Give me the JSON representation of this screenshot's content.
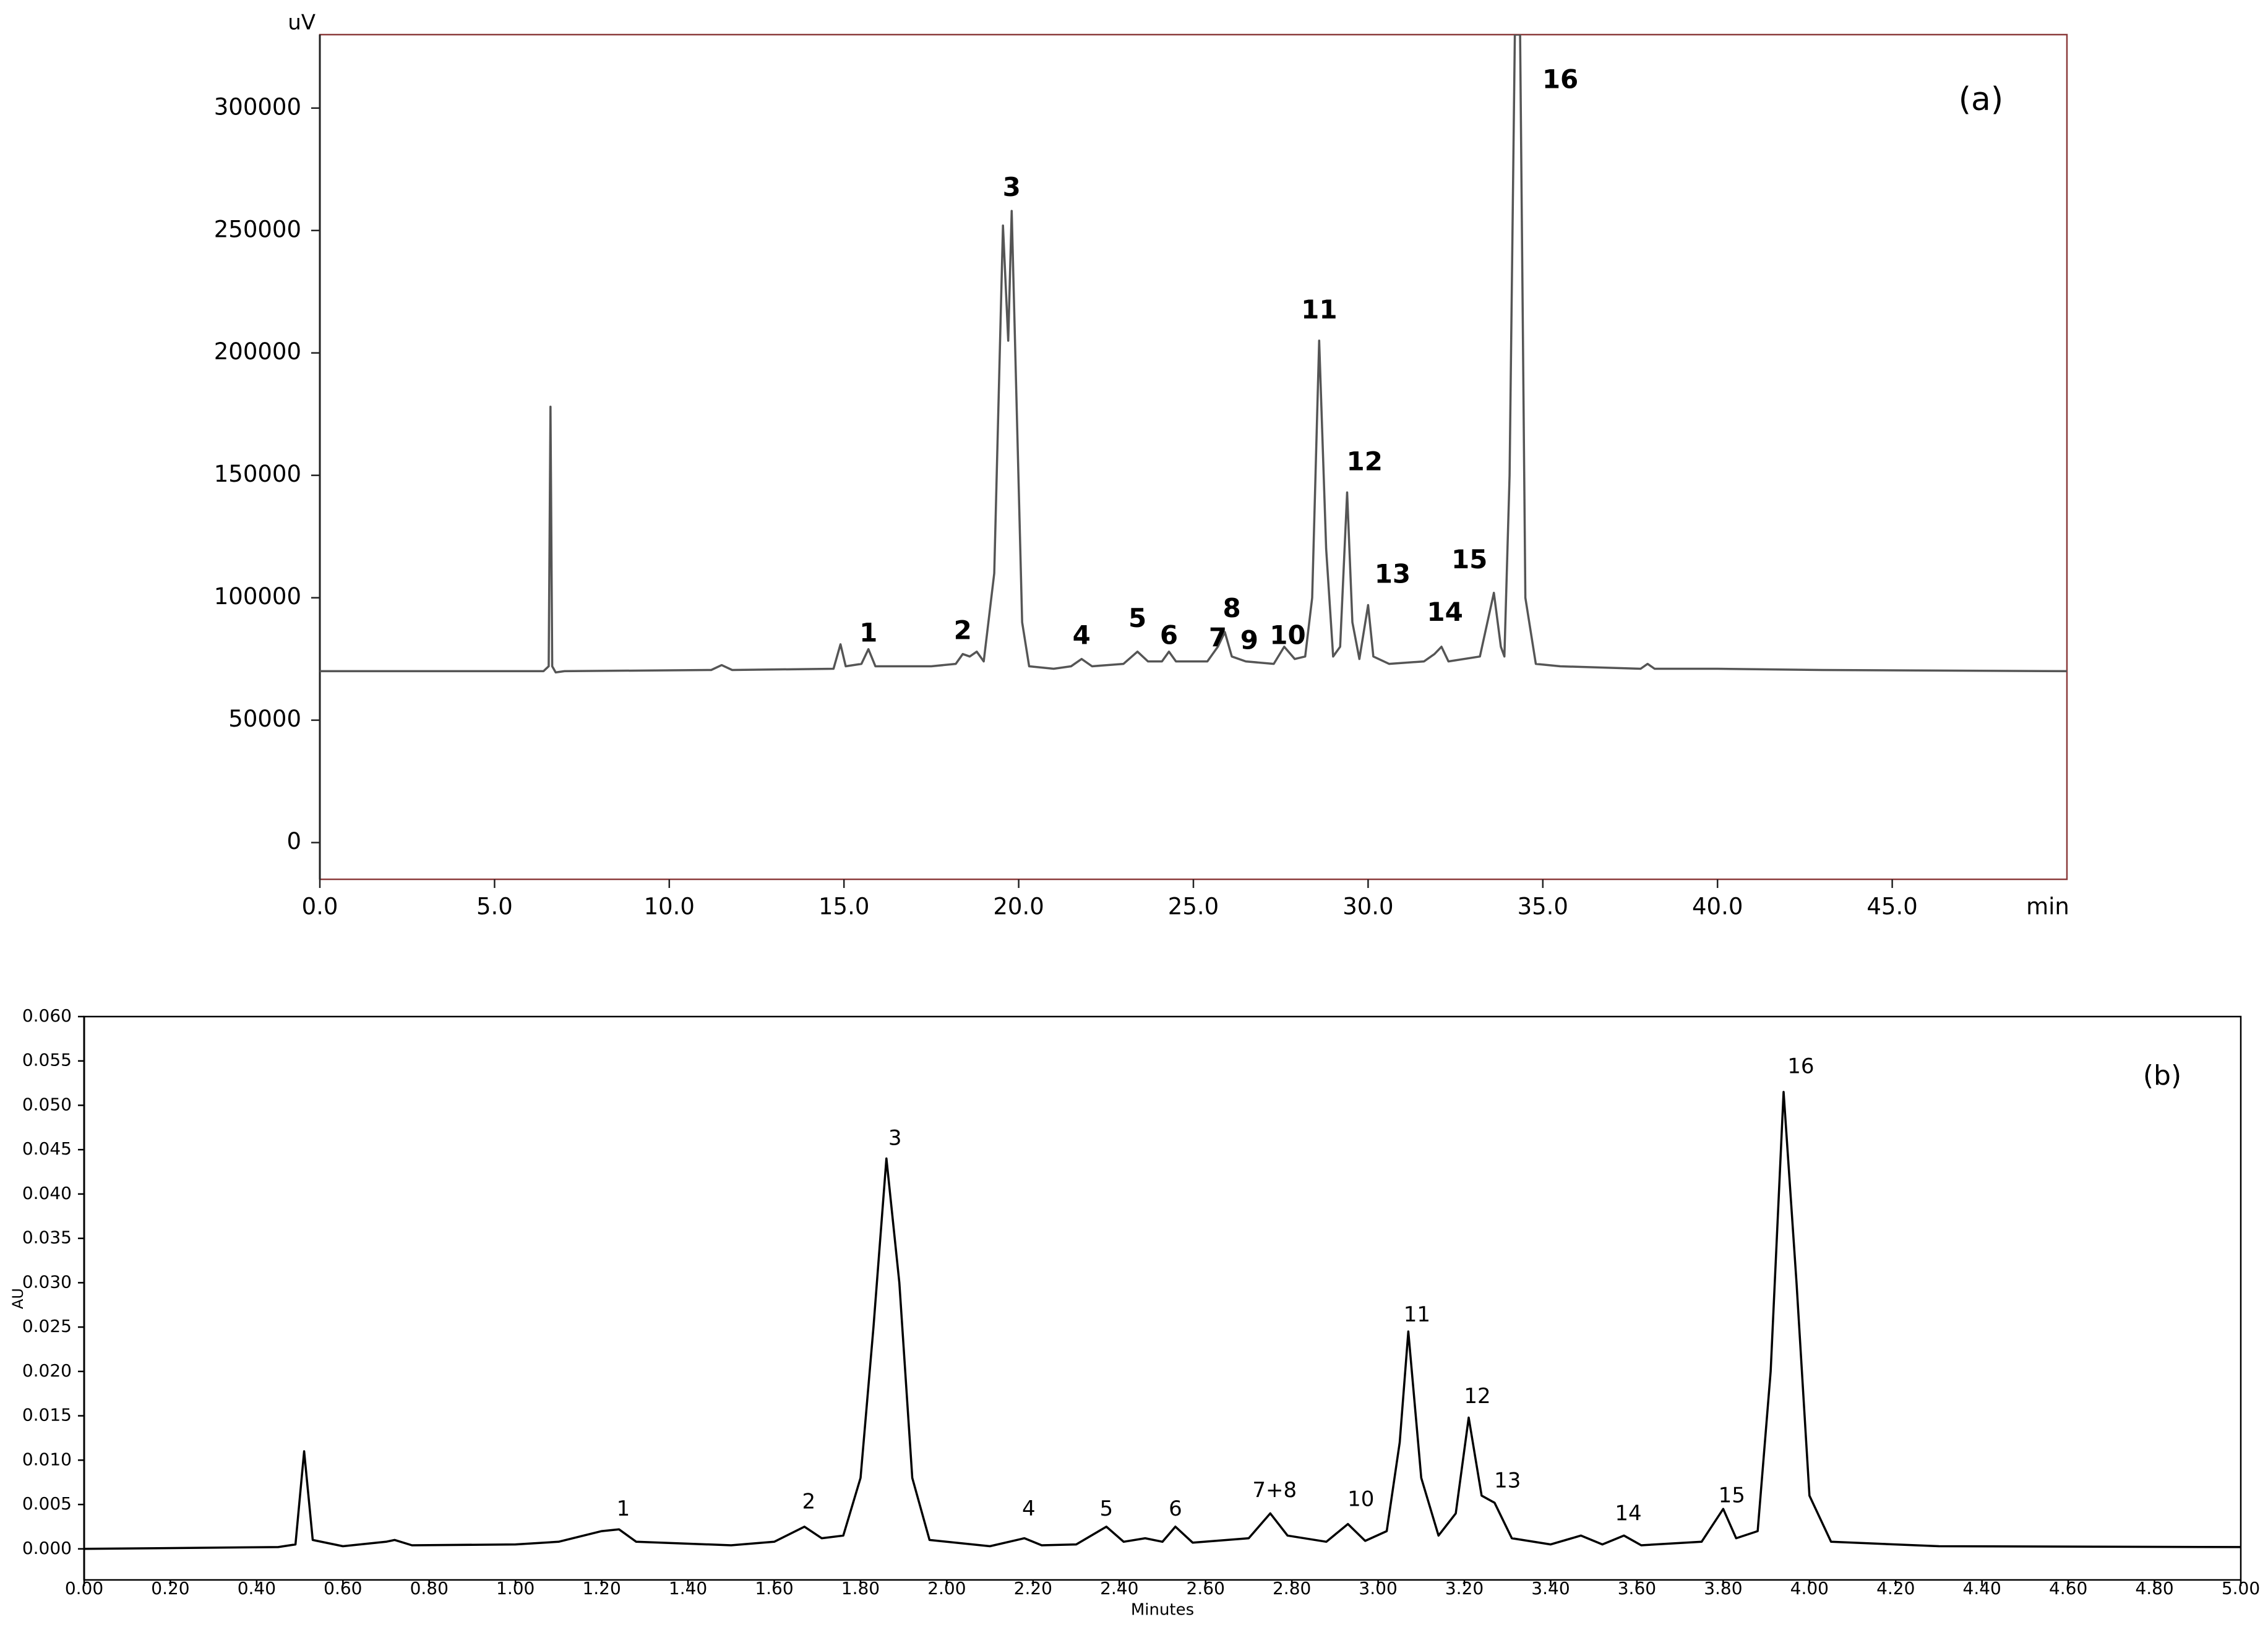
{
  "chart_data": [
    {
      "type": "line",
      "panel_label": "(a)",
      "ylabel": "uV",
      "xlabel": "min",
      "color": "#555555",
      "xlim": [
        0,
        50
      ],
      "ylim": [
        -15000,
        330000
      ],
      "xticks": [
        {
          "value": 0,
          "label": "0.0"
        },
        {
          "value": 5,
          "label": "5.0"
        },
        {
          "value": 10,
          "label": "10.0"
        },
        {
          "value": 15,
          "label": "15.0"
        },
        {
          "value": 20,
          "label": "20.0"
        },
        {
          "value": 25,
          "label": "25.0"
        },
        {
          "value": 30,
          "label": "30.0"
        },
        {
          "value": 35,
          "label": "35.0"
        },
        {
          "value": 40,
          "label": "40.0"
        },
        {
          "value": 45,
          "label": "45.0"
        }
      ],
      "yticks": [
        0,
        50000,
        100000,
        150000,
        200000,
        250000,
        300000
      ],
      "x": [
        0,
        6.4,
        6.55,
        6.6,
        6.65,
        6.75,
        7,
        11.2,
        11.5,
        11.8,
        14.7,
        14.9,
        15.05,
        15.5,
        15.7,
        15.9,
        17.5,
        18.2,
        18.4,
        18.6,
        18.8,
        19.0,
        19.3,
        19.55,
        19.7,
        19.8,
        20.1,
        20.3,
        21,
        21.5,
        21.8,
        22.1,
        23,
        23.4,
        23.7,
        24.1,
        24.3,
        24.5,
        25.4,
        25.7,
        25.9,
        26.1,
        26.5,
        27.3,
        27.6,
        27.9,
        28.2,
        28.4,
        28.6,
        28.8,
        29.0,
        29.2,
        29.4,
        29.55,
        29.75,
        30.0,
        30.15,
        30.6,
        31.6,
        31.9,
        32.1,
        32.3,
        33.2,
        33.6,
        33.8,
        33.9,
        34.05,
        34.2,
        34.35,
        34.5,
        34.8,
        35.5,
        37.8,
        38,
        38.2,
        40,
        43,
        50
      ],
      "values": [
        70000,
        70000,
        72000,
        178000,
        72000,
        69500,
        70000,
        70500,
        72500,
        70500,
        71000,
        81000,
        72000,
        73000,
        79000,
        72000,
        72000,
        73000,
        77000,
        76000,
        78000,
        74000,
        110000,
        252000,
        205000,
        258000,
        90000,
        72000,
        71000,
        72000,
        75000,
        72000,
        73000,
        78000,
        74000,
        74000,
        78000,
        74000,
        74000,
        80000,
        86000,
        76000,
        74000,
        73000,
        80000,
        75000,
        76000,
        100000,
        205000,
        120000,
        76000,
        80000,
        143000,
        90000,
        75000,
        97000,
        76000,
        73000,
        74000,
        77000,
        80000,
        74000,
        76000,
        102000,
        80000,
        76000,
        150000,
        330000,
        330000,
        100000,
        73000,
        72000,
        71000,
        73000,
        71000,
        71000,
        70500,
        70000
      ],
      "annotations": [
        {
          "text": "1",
          "x": 15.7,
          "y": 85000
        },
        {
          "text": "2",
          "x": 18.4,
          "y": 86000
        },
        {
          "text": "3",
          "x": 19.8,
          "y": 267000
        },
        {
          "text": "4",
          "x": 21.8,
          "y": 84000
        },
        {
          "text": "5",
          "x": 23.4,
          "y": 91000
        },
        {
          "text": "6",
          "x": 24.3,
          "y": 84000
        },
        {
          "text": "7",
          "x": 25.7,
          "y": 83000
        },
        {
          "text": "8",
          "x": 26.1,
          "y": 95000
        },
        {
          "text": "9",
          "x": 26.6,
          "y": 82000
        },
        {
          "text": "10",
          "x": 27.7,
          "y": 84000
        },
        {
          "text": "11",
          "x": 28.6,
          "y": 217000
        },
        {
          "text": "12",
          "x": 29.9,
          "y": 155000
        },
        {
          "text": "13",
          "x": 30.7,
          "y": 109000
        },
        {
          "text": "14",
          "x": 32.2,
          "y": 93500
        },
        {
          "text": "15",
          "x": 32.9,
          "y": 115000
        },
        {
          "text": "16",
          "x": 35.5,
          "y": 311000
        }
      ]
    },
    {
      "type": "line",
      "panel_label": "(b)",
      "ylabel": "AU",
      "xlabel": "Minutes",
      "color": "#000000",
      "xlim": [
        0,
        5
      ],
      "ylim": [
        -0.0035,
        0.06
      ],
      "xticks": [
        {
          "value": 0,
          "label": "0.00"
        },
        {
          "value": 0.2,
          "label": "0.20"
        },
        {
          "value": 0.4,
          "label": "0.40"
        },
        {
          "value": 0.6,
          "label": "0.60"
        },
        {
          "value": 0.8,
          "label": "0.80"
        },
        {
          "value": 1,
          "label": "1.00"
        },
        {
          "value": 1.2,
          "label": "1.20"
        },
        {
          "value": 1.4,
          "label": "1.40"
        },
        {
          "value": 1.6,
          "label": "1.60"
        },
        {
          "value": 1.8,
          "label": "1.80"
        },
        {
          "value": 2,
          "label": "2.00"
        },
        {
          "value": 2.2,
          "label": "2.20"
        },
        {
          "value": 2.4,
          "label": "2.40"
        },
        {
          "value": 2.6,
          "label": "2.60"
        },
        {
          "value": 2.8,
          "label": "2.80"
        },
        {
          "value": 3,
          "label": "3.00"
        },
        {
          "value": 3.2,
          "label": "3.20"
        },
        {
          "value": 3.4,
          "label": "3.40"
        },
        {
          "value": 3.6,
          "label": "3.60"
        },
        {
          "value": 3.8,
          "label": "3.80"
        },
        {
          "value": 4,
          "label": "4.00"
        },
        {
          "value": 4.2,
          "label": "4.20"
        },
        {
          "value": 4.4,
          "label": "4.40"
        },
        {
          "value": 4.6,
          "label": "4.60"
        },
        {
          "value": 4.8,
          "label": "4.80"
        },
        {
          "value": 5,
          "label": "5.00"
        }
      ],
      "yticks": [
        {
          "value": 0,
          "label": "0.000"
        },
        {
          "value": 0.005,
          "label": "0.005"
        },
        {
          "value": 0.01,
          "label": "0.010"
        },
        {
          "value": 0.015,
          "label": "0.015"
        },
        {
          "value": 0.02,
          "label": "0.020"
        },
        {
          "value": 0.025,
          "label": "0.025"
        },
        {
          "value": 0.03,
          "label": "0.030"
        },
        {
          "value": 0.035,
          "label": "0.035"
        },
        {
          "value": 0.04,
          "label": "0.040"
        },
        {
          "value": 0.045,
          "label": "0.045"
        },
        {
          "value": 0.05,
          "label": "0.050"
        },
        {
          "value": 0.055,
          "label": "0.055"
        },
        {
          "value": 0.06,
          "label": "0.060"
        }
      ],
      "x": [
        0,
        0.45,
        0.49,
        0.51,
        0.53,
        0.6,
        0.7,
        0.72,
        0.76,
        1.0,
        1.1,
        1.2,
        1.24,
        1.28,
        1.5,
        1.6,
        1.67,
        1.71,
        1.76,
        1.8,
        1.83,
        1.86,
        1.89,
        1.92,
        1.96,
        2.1,
        2.18,
        2.22,
        2.3,
        2.37,
        2.41,
        2.46,
        2.5,
        2.53,
        2.57,
        2.7,
        2.75,
        2.79,
        2.88,
        2.93,
        2.97,
        3.02,
        3.05,
        3.07,
        3.1,
        3.14,
        3.18,
        3.21,
        3.24,
        3.27,
        3.31,
        3.4,
        3.47,
        3.52,
        3.57,
        3.61,
        3.75,
        3.8,
        3.83,
        3.88,
        3.91,
        3.94,
        3.97,
        4.0,
        4.05,
        4.3,
        5.0
      ],
      "values": [
        0,
        0.0002,
        0.0005,
        0.011,
        0.001,
        0.0003,
        0.0008,
        0.001,
        0.0004,
        0.0005,
        0.0008,
        0.002,
        0.0022,
        0.0008,
        0.0004,
        0.0008,
        0.0025,
        0.0012,
        0.0015,
        0.008,
        0.025,
        0.044,
        0.03,
        0.008,
        0.001,
        0.0003,
        0.0012,
        0.0004,
        0.0005,
        0.0025,
        0.0008,
        0.0012,
        0.0008,
        0.0025,
        0.0007,
        0.0012,
        0.004,
        0.0015,
        0.0008,
        0.0028,
        0.0009,
        0.002,
        0.012,
        0.0245,
        0.008,
        0.0015,
        0.004,
        0.0148,
        0.006,
        0.0052,
        0.0012,
        0.0005,
        0.0015,
        0.0005,
        0.0015,
        0.0004,
        0.0008,
        0.0045,
        0.0012,
        0.002,
        0.02,
        0.0515,
        0.03,
        0.006,
        0.0008,
        0.0003,
        0.0002
      ],
      "annotations": [
        {
          "text": "1",
          "x": 1.25,
          "y": 0.0044
        },
        {
          "text": "2",
          "x": 1.68,
          "y": 0.0052
        },
        {
          "text": "3",
          "x": 1.88,
          "y": 0.0462
        },
        {
          "text": "4",
          "x": 2.19,
          "y": 0.0044
        },
        {
          "text": "5",
          "x": 2.37,
          "y": 0.0044
        },
        {
          "text": "6",
          "x": 2.53,
          "y": 0.0044
        },
        {
          "text": "7+8",
          "x": 2.76,
          "y": 0.0065
        },
        {
          "text": "10",
          "x": 2.96,
          "y": 0.0055
        },
        {
          "text": "11",
          "x": 3.09,
          "y": 0.0263
        },
        {
          "text": "12",
          "x": 3.23,
          "y": 0.0171
        },
        {
          "text": "13",
          "x": 3.3,
          "y": 0.0076
        },
        {
          "text": "14",
          "x": 3.58,
          "y": 0.0039
        },
        {
          "text": "15",
          "x": 3.82,
          "y": 0.0059
        },
        {
          "text": "16",
          "x": 3.98,
          "y": 0.0543
        }
      ]
    }
  ]
}
